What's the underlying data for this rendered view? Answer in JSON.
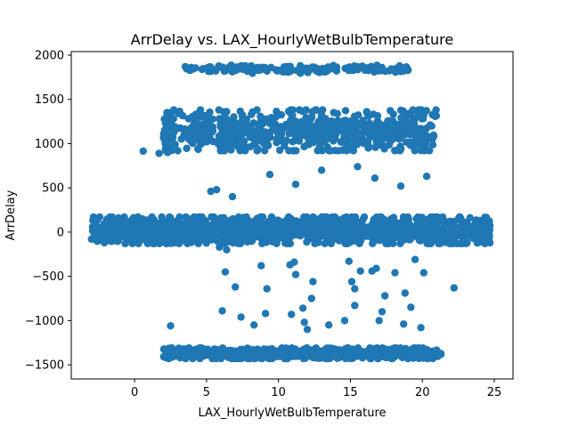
{
  "chart_data": {
    "type": "scatter",
    "title": "ArrDelay vs. LAX_HourlyWetBulbTemperature",
    "xlabel": "LAX_HourlyWetBulbTemperature",
    "ylabel": "ArrDelay",
    "xlim": [
      -4.4,
      26.3
    ],
    "ylim": [
      -1660,
      2040
    ],
    "xticks": [
      0,
      5,
      10,
      15,
      20,
      25
    ],
    "yticks": [
      -1500,
      -1000,
      -500,
      0,
      500,
      1000,
      1500,
      2000
    ],
    "point_color": "#1f77b4",
    "grid": false,
    "legend": "none",
    "clusters": [
      {
        "name": "top band",
        "x_range": [
          3.3,
          19.1
        ],
        "y_center": 1840,
        "y_spread": 45,
        "count": 160
      },
      {
        "name": "upper band",
        "x_range": [
          2.0,
          21.0
        ],
        "y_center": 1150,
        "y_spread": 230,
        "count": 700
      },
      {
        "name": "main band",
        "x_range": [
          -3.0,
          24.7
        ],
        "y_center": 20,
        "y_spread": 150,
        "count": 1400
      },
      {
        "name": "low band",
        "x_range": [
          1.9,
          21.3
        ],
        "y_center": -1370,
        "y_spread": 60,
        "count": 650
      }
    ],
    "points": [
      [
        0.6,
        915
      ],
      [
        1.7,
        890
      ],
      [
        2.3,
        900
      ],
      [
        2.5,
        970
      ],
      [
        3.0,
        920
      ],
      [
        5.3,
        460
      ],
      [
        5.7,
        480
      ],
      [
        6.8,
        400
      ],
      [
        9.4,
        650
      ],
      [
        11.2,
        540
      ],
      [
        13.0,
        700
      ],
      [
        15.5,
        740
      ],
      [
        16.7,
        610
      ],
      [
        18.5,
        520
      ],
      [
        20.3,
        630
      ],
      [
        5.9,
        -170
      ],
      [
        6.4,
        -200
      ],
      [
        6.3,
        -450
      ],
      [
        7.0,
        -620
      ],
      [
        6.1,
        -890
      ],
      [
        8.8,
        -380
      ],
      [
        9.2,
        -640
      ],
      [
        10.8,
        -370
      ],
      [
        11.2,
        -480
      ],
      [
        11.1,
        -340
      ],
      [
        10.9,
        -930
      ],
      [
        11.7,
        -860
      ],
      [
        12.3,
        -750
      ],
      [
        12.4,
        -560
      ],
      [
        11.8,
        -1020
      ],
      [
        14.9,
        -330
      ],
      [
        15.1,
        -560
      ],
      [
        15.3,
        -640
      ],
      [
        15.7,
        -440
      ],
      [
        16.5,
        -440
      ],
      [
        16.8,
        -410
      ],
      [
        15.3,
        -830
      ],
      [
        14.6,
        -1000
      ],
      [
        17.2,
        -900
      ],
      [
        17.4,
        -720
      ],
      [
        18.1,
        -460
      ],
      [
        18.8,
        -690
      ],
      [
        19.5,
        -310
      ],
      [
        20.1,
        -460
      ],
      [
        22.2,
        -630
      ],
      [
        18.7,
        -1040
      ],
      [
        19.9,
        -1080
      ],
      [
        2.5,
        -1060
      ],
      [
        7.4,
        -960
      ],
      [
        9.1,
        -920
      ],
      [
        8.3,
        -1050
      ],
      [
        12.0,
        -1100
      ],
      [
        13.5,
        -1050
      ],
      [
        17.0,
        -1000
      ],
      [
        19.2,
        -850
      ]
    ]
  }
}
